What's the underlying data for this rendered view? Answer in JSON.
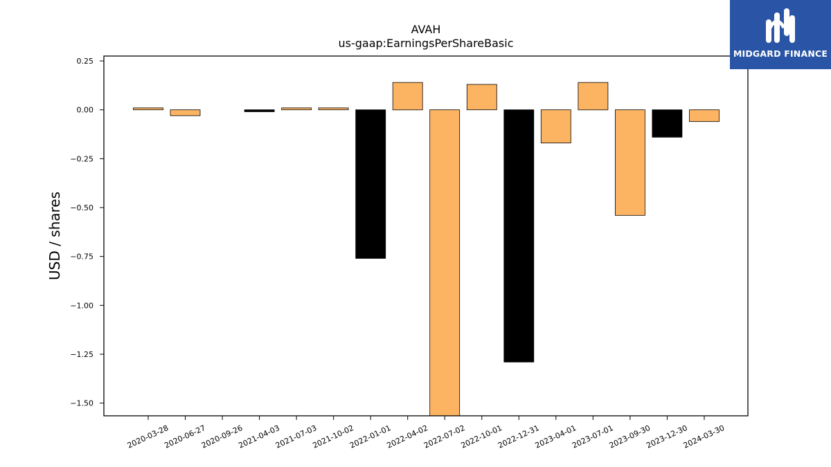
{
  "chart_data": {
    "type": "bar",
    "title": "AVAH",
    "subtitle": "us-gaap:EarningsPerShareBasic",
    "xlabel": "",
    "ylabel": "USD / shares",
    "categories": [
      "2020-03-28",
      "2020-06-27",
      "2020-09-26",
      "2021-04-03",
      "2021-07-03",
      "2021-10-02",
      "2022-01-01",
      "2022-04-02",
      "2022-07-02",
      "2022-10-01",
      "2022-12-31",
      "2023-04-01",
      "2023-07-01",
      "2023-09-30",
      "2023-12-30",
      "2024-03-30"
    ],
    "values": [
      0.01,
      -0.03,
      0.0,
      -0.01,
      0.01,
      0.01,
      -0.76,
      0.14,
      -1.58,
      0.13,
      -1.29,
      -0.17,
      0.14,
      -0.54,
      -0.14,
      -0.06
    ],
    "bar_colors": [
      "#fdb462",
      "#fdb462",
      "#fdb462",
      "#000000",
      "#fdb462",
      "#fdb462",
      "#000000",
      "#fdb462",
      "#fdb462",
      "#fdb462",
      "#000000",
      "#fdb462",
      "#fdb462",
      "#fdb462",
      "#000000",
      "#fdb462"
    ],
    "ylim": [
      -1.565,
      0.275
    ],
    "yticks": [
      "0.25",
      "0.00",
      "−0.25",
      "−0.50",
      "−0.75",
      "−1.00",
      "−1.25",
      "−1.50"
    ],
    "ytick_values": [
      0.25,
      0.0,
      -0.25,
      -0.5,
      -0.75,
      -1.0,
      -1.25,
      -1.5
    ],
    "grid": false,
    "legend": "none"
  },
  "logo": {
    "text": "MIDGARD FINANCE",
    "bg_color": "#2a55a6"
  }
}
